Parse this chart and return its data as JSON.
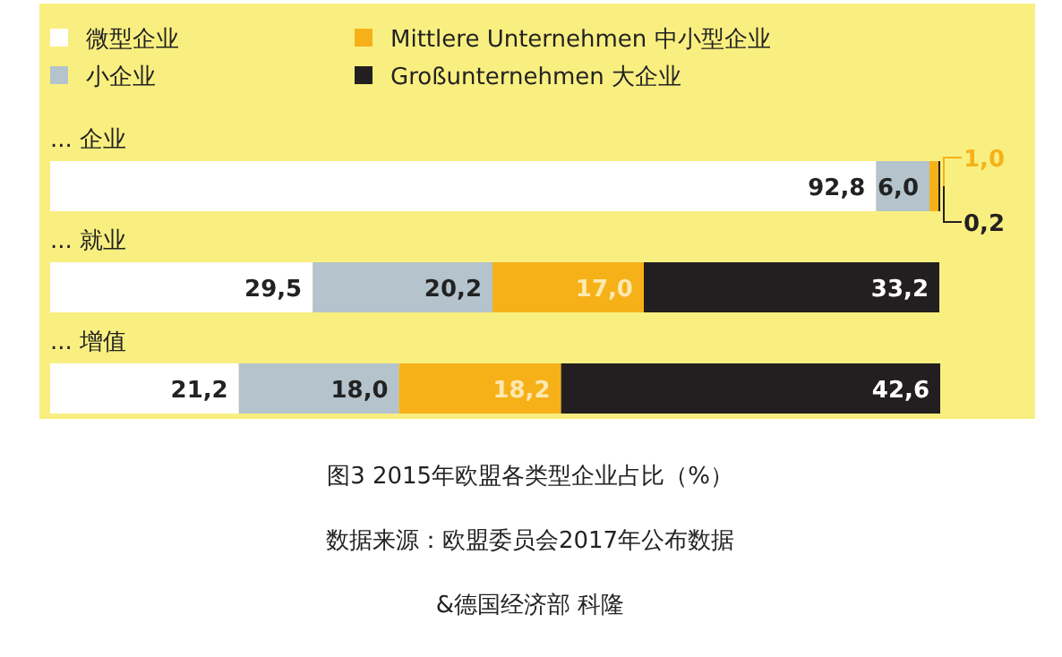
{
  "chart_data": {
    "type": "bar",
    "orientation": "horizontal",
    "stacked": true,
    "legend": "top left",
    "title": "图3 2015年欧盟各类型企业占比（%）",
    "annotations": [
      "数据来源：欧盟委员会2017年公布数据",
      "&德国经济部 科隆"
    ],
    "categories": [
      "... 企业",
      "... 就业",
      "... 增值"
    ],
    "series": [
      {
        "name": "微型企业",
        "color": "#ffffff",
        "values": [
          92.8,
          29.5,
          21.2
        ],
        "value_labels": [
          "92,8",
          "29,5",
          "21,2"
        ]
      },
      {
        "name": "小企业",
        "color": "#b4c3cc",
        "values": [
          6.0,
          20.2,
          18.0
        ],
        "value_labels": [
          "6,0",
          "20,2",
          "18,0"
        ]
      },
      {
        "name": "Mittlere Unternehmen 中小型企业",
        "color": "#f6b119",
        "values": [
          1.0,
          17.0,
          18.2
        ],
        "value_labels": [
          "1,0",
          "17,0",
          "18,2"
        ]
      },
      {
        "name": "Großunternehmen 大企业",
        "color": "#231f20",
        "values": [
          0.2,
          33.2,
          42.6
        ],
        "value_labels": [
          "0,2",
          "33,2",
          "42,6"
        ]
      }
    ]
  }
}
